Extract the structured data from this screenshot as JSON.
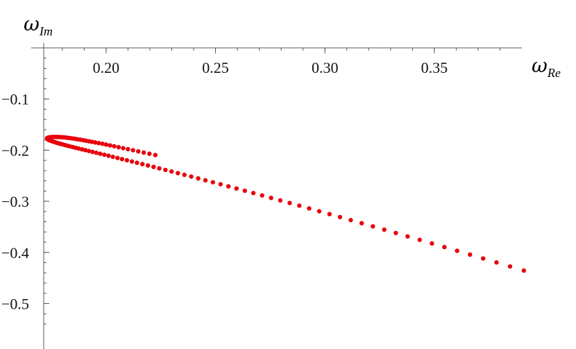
{
  "chart_data": {
    "type": "scatter",
    "xlabel": {
      "symbol": "ω",
      "subscript": "Re"
    },
    "ylabel": {
      "symbol": "ω",
      "subscript": "Im"
    },
    "x_ticks": [
      0.2,
      0.25,
      0.3,
      0.35
    ],
    "x_tick_labels": [
      "0.20",
      "0.25",
      "0.30",
      "0.35"
    ],
    "y_ticks": [
      -0.1,
      -0.2,
      -0.3,
      -0.4,
      -0.5
    ],
    "y_tick_labels": [
      "−0.1",
      "−0.2",
      "−0.3",
      "−0.4",
      "−0.5"
    ],
    "xlim": [
      0.1715,
      0.39
    ],
    "ylim": [
      -0.555,
      0.0
    ],
    "x_axis_position": "top",
    "grid": false,
    "marker_color": "#e8000b",
    "series": [
      {
        "points": [
          [
            0.2225,
            -0.2096
          ],
          [
            0.2198,
            -0.2071
          ],
          [
            0.2172,
            -0.2047
          ],
          [
            0.2147,
            -0.2024
          ],
          [
            0.2123,
            -0.2002
          ],
          [
            0.21,
            -0.1981
          ],
          [
            0.2078,
            -0.1961
          ],
          [
            0.2057,
            -0.1942
          ],
          [
            0.2037,
            -0.1924
          ],
          [
            0.2018,
            -0.1907
          ],
          [
            0.2,
            -0.1891
          ],
          [
            0.1983,
            -0.1876
          ],
          [
            0.1966,
            -0.1862
          ],
          [
            0.195,
            -0.1849
          ],
          [
            0.1935,
            -0.1837
          ],
          [
            0.1921,
            -0.1826
          ],
          [
            0.1908,
            -0.1815
          ],
          [
            0.1895,
            -0.1805
          ],
          [
            0.1883,
            -0.1796
          ],
          [
            0.1872,
            -0.1788
          ],
          [
            0.1861,
            -0.1781
          ],
          [
            0.1851,
            -0.1774
          ],
          [
            0.1841,
            -0.1768
          ],
          [
            0.1832,
            -0.1763
          ],
          [
            0.1823,
            -0.1758
          ],
          [
            0.1815,
            -0.1754
          ],
          [
            0.1807,
            -0.175
          ],
          [
            0.1799,
            -0.1747
          ],
          [
            0.1791,
            -0.1745
          ],
          [
            0.1784,
            -0.1743
          ],
          [
            0.1777,
            -0.1742
          ],
          [
            0.177,
            -0.1741
          ],
          [
            0.1763,
            -0.1741
          ],
          [
            0.1756,
            -0.1742
          ],
          [
            0.175,
            -0.1744
          ],
          [
            0.1744,
            -0.1747
          ],
          [
            0.1738,
            -0.1751
          ],
          [
            0.1734,
            -0.1756
          ],
          [
            0.1731,
            -0.1763
          ],
          [
            0.173,
            -0.177
          ],
          [
            0.1731,
            -0.1778
          ],
          [
            0.1733,
            -0.1786
          ],
          [
            0.1736,
            -0.1795
          ],
          [
            0.174,
            -0.1804
          ],
          [
            0.1745,
            -0.1813
          ],
          [
            0.1751,
            -0.1823
          ],
          [
            0.1758,
            -0.1833
          ],
          [
            0.1765,
            -0.1843
          ],
          [
            0.1773,
            -0.1854
          ],
          [
            0.1782,
            -0.1865
          ],
          [
            0.1791,
            -0.1876
          ],
          [
            0.1801,
            -0.1888
          ],
          [
            0.1812,
            -0.19
          ],
          [
            0.1823,
            -0.1913
          ],
          [
            0.1835,
            -0.1926
          ],
          [
            0.1848,
            -0.194
          ],
          [
            0.1861,
            -0.1954
          ],
          [
            0.1875,
            -0.1969
          ],
          [
            0.189,
            -0.1984
          ],
          [
            0.1905,
            -0.2
          ],
          [
            0.1921,
            -0.2017
          ],
          [
            0.1938,
            -0.2034
          ],
          [
            0.1955,
            -0.2052
          ],
          [
            0.1973,
            -0.2071
          ],
          [
            0.1992,
            -0.209
          ],
          [
            0.2011,
            -0.211
          ],
          [
            0.2031,
            -0.2131
          ],
          [
            0.2052,
            -0.2153
          ],
          [
            0.2073,
            -0.2175
          ],
          [
            0.2095,
            -0.2198
          ],
          [
            0.2118,
            -0.2222
          ],
          [
            0.2141,
            -0.2247
          ],
          [
            0.2166,
            -0.2273
          ],
          [
            0.2191,
            -0.23
          ],
          [
            0.2217,
            -0.2328
          ],
          [
            0.2243,
            -0.2357
          ],
          [
            0.2271,
            -0.2387
          ],
          [
            0.2299,
            -0.2418
          ],
          [
            0.2328,
            -0.245
          ],
          [
            0.2358,
            -0.2483
          ],
          [
            0.2389,
            -0.2517
          ],
          [
            0.2421,
            -0.2553
          ],
          [
            0.2454,
            -0.259
          ],
          [
            0.2488,
            -0.2628
          ],
          [
            0.2523,
            -0.2667
          ],
          [
            0.2559,
            -0.2708
          ],
          [
            0.2596,
            -0.275
          ],
          [
            0.2634,
            -0.2794
          ],
          [
            0.2673,
            -0.2839
          ],
          [
            0.2713,
            -0.2886
          ],
          [
            0.2754,
            -0.2934
          ],
          [
            0.2796,
            -0.2983
          ],
          [
            0.2839,
            -0.3034
          ],
          [
            0.2883,
            -0.3086
          ],
          [
            0.2928,
            -0.314
          ],
          [
            0.2974,
            -0.3195
          ],
          [
            0.3021,
            -0.3251
          ],
          [
            0.3069,
            -0.3309
          ],
          [
            0.3118,
            -0.3368
          ],
          [
            0.3168,
            -0.3429
          ],
          [
            0.3219,
            -0.3491
          ],
          [
            0.3271,
            -0.3555
          ],
          [
            0.3324,
            -0.362
          ],
          [
            0.3378,
            -0.3687
          ],
          [
            0.3433,
            -0.3755
          ],
          [
            0.3489,
            -0.3825
          ],
          [
            0.3546,
            -0.3896
          ],
          [
            0.3604,
            -0.3969
          ],
          [
            0.3663,
            -0.4043
          ],
          [
            0.3723,
            -0.4119
          ],
          [
            0.3784,
            -0.4196
          ],
          [
            0.3846,
            -0.4275
          ],
          [
            0.3909,
            -0.4355
          ]
        ]
      }
    ]
  }
}
